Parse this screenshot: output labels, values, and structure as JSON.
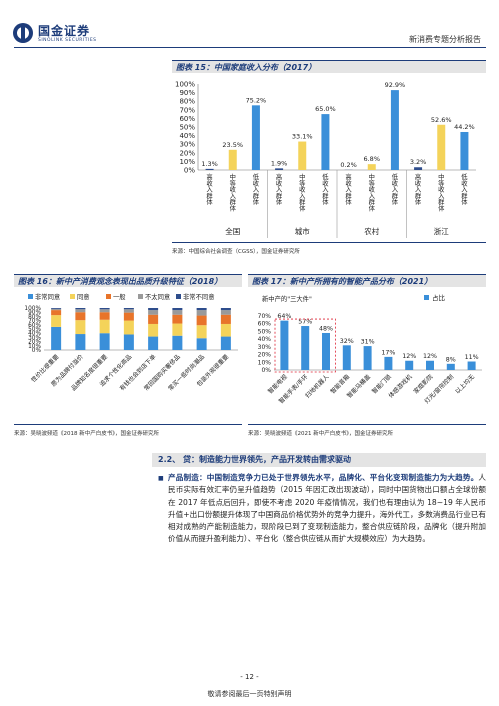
{
  "header": {
    "logo_cn": "国金证券",
    "logo_en": "SINOLINK SECURITIES",
    "report_type": "新消费专题分析报告"
  },
  "fig15": {
    "title": "图表 15：中国家庭收入分布（2017）",
    "source": "来源：中国综合社会调查（CGSS），国金证券研究所"
  },
  "fig16": {
    "title": "图表 16：新中产消费观念表现出品质升级特征（2018）",
    "source": "来源：吴晓波频道《2018 新中产白皮书》，国金证券研究所"
  },
  "fig17": {
    "title": "图表 17：新中产所拥有的智能产品分布（2021）",
    "source": "来源：吴晓波频道《2021 新中产白皮书》，国金证券研究所"
  },
  "chart_data": [
    {
      "type": "bar",
      "title": "图表 15：中国家庭收入分布（2017）",
      "groups": [
        "全国",
        "城市",
        "农村",
        "浙江"
      ],
      "categories": [
        "高收入群体",
        "中等收入群体",
        "低收入群体"
      ],
      "values": [
        [
          1.3,
          23.5,
          75.2
        ],
        [
          1.9,
          33.1,
          65.0
        ],
        [
          0.2,
          6.8,
          92.9
        ],
        [
          3.2,
          52.6,
          44.2
        ]
      ],
      "value_labels": [
        [
          "1.3%",
          "23.5%",
          "75.2%"
        ],
        [
          "1.9%",
          "33.1%",
          "65.0%"
        ],
        [
          "0.2%",
          "6.8%",
          "92.9%"
        ],
        [
          "3.2%",
          "52.6%",
          "44.2%"
        ]
      ],
      "colors": [
        "#2e4d8c",
        "#f4d35a",
        "#3a8fd9"
      ],
      "ylim": [
        0,
        100
      ],
      "yticks": [
        "0%",
        "10%",
        "20%",
        "30%",
        "40%",
        "50%",
        "60%",
        "70%",
        "80%",
        "90%",
        "100%"
      ]
    },
    {
      "type": "bar",
      "stacked": true,
      "title": "图表 16：新中产消费观念表现出品质升级特征（2018）",
      "legend": [
        "非常同意",
        "同意",
        "一般",
        "不太同意",
        "非常不同意"
      ],
      "colors": [
        "#3a8fd9",
        "#f4d35a",
        "#e8742a",
        "#9a9a9a",
        "#2e4d8c"
      ],
      "categories": [
        "性价比很重要",
        "愿为品牌付溢价",
        "品牌知名度很重要",
        "追求个性化商品",
        "有钱也会到店下单",
        "常回国购买奢侈品",
        "常买一些时尚潮品",
        "包装外观很重要"
      ],
      "series": [
        {
          "name": "非常同意",
          "values": [
            55,
            38,
            40,
            37,
            32,
            34,
            28,
            32
          ]
        },
        {
          "name": "同意",
          "values": [
            28,
            33,
            32,
            33,
            30,
            29,
            31,
            30
          ]
        },
        {
          "name": "一般",
          "values": [
            12,
            19,
            18,
            19,
            22,
            21,
            23,
            22
          ]
        },
        {
          "name": "不太同意",
          "values": [
            3,
            7,
            7,
            8,
            11,
            11,
            13,
            11
          ]
        },
        {
          "name": "非常不同意",
          "values": [
            2,
            3,
            3,
            3,
            5,
            5,
            5,
            5
          ]
        }
      ],
      "ylim": [
        0,
        100
      ],
      "yticks": [
        "0%",
        "10%",
        "20%",
        "30%",
        "40%",
        "50%",
        "60%",
        "70%",
        "80%",
        "90%",
        "100%"
      ]
    },
    {
      "type": "bar",
      "title": "图表 17：新中产所拥有的智能产品分布（2021）",
      "categories": [
        "智能电视",
        "智能手表/手环",
        "扫地机器人",
        "智能音箱",
        "智能马桶盖",
        "智能门锁",
        "体感游戏机",
        "家庭影院",
        "灯光/窗帘控制",
        "以上均无"
      ],
      "values": [
        64,
        57,
        48,
        32,
        31,
        17,
        12,
        12,
        8,
        11
      ],
      "value_labels": [
        "64%",
        "57%",
        "48%",
        "32%",
        "31%",
        "17%",
        "12%",
        "12%",
        "8%",
        "11%"
      ],
      "legend": [
        "占比"
      ],
      "annotation": "新中产的\"三大件\"",
      "ylim": [
        0,
        70
      ],
      "yticks": [
        "0%",
        "10%",
        "20%",
        "30%",
        "40%",
        "50%",
        "60%",
        "70%"
      ],
      "color": "#3a8fd9"
    }
  ],
  "section": {
    "heading": "2.2、 贷：制造能力世界领先，产品开发转由需求驱动",
    "para_lead": "产品制造：中国制造竞争力已处于世界领先水平，品牌化、平台化变现制造能力为大趋势。",
    "para_body": "人民币实际有效汇率仍呈升值趋势（2015 年因汇改出现波动），同时中国货物出口额占全球份额在 2017 年低点后回升，即使不考虑 2020 年疫情情况，我们也有理由认为 18~19 年人民币升值+出口份额提升体现了中国商品价格优势外的竞争力提升，海外代工，多数消费品行业已有相对成熟的产能制造能力，现阶段已到了变现制造能力，整合供应链阶段，品牌化（提升附加价值从而提升盈利能力）、平台化（整合供应链从而扩大规模效应）为大趋势。"
  },
  "footer": {
    "page_num": "- 12 -",
    "disclaimer": "敬请参阅最后一页特别声明"
  }
}
